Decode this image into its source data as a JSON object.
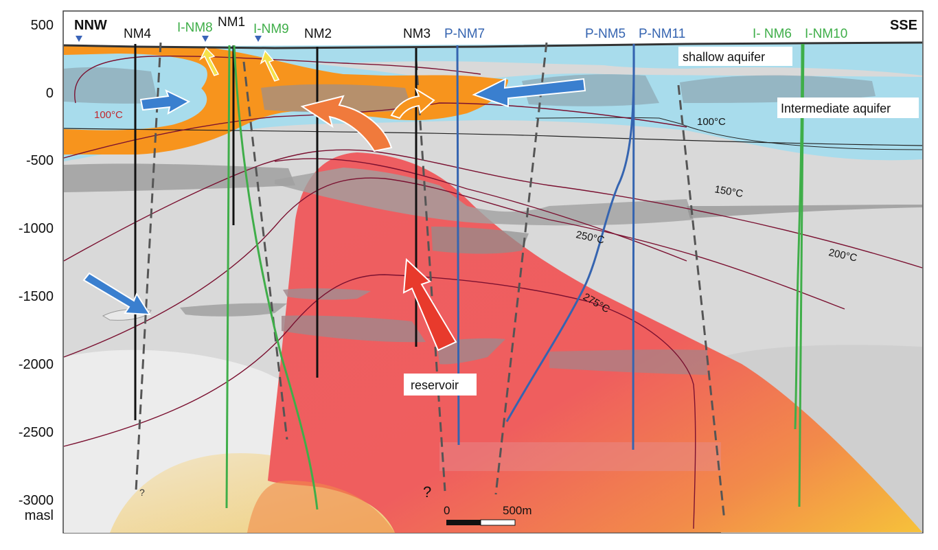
{
  "section": {
    "left_end": "NNW",
    "right_end": "SSE",
    "unit": "masl"
  },
  "depth_axis": {
    "ticks": [
      {
        "label": "500",
        "value": 500
      },
      {
        "label": "0",
        "value": 0
      },
      {
        "label": "-500",
        "value": -500
      },
      {
        "label": "-1000",
        "value": -1000
      },
      {
        "label": "-1500",
        "value": -1500
      },
      {
        "label": "-2000",
        "value": -2000
      },
      {
        "label": "-2500",
        "value": -2500
      },
      {
        "label": "-3000",
        "value": -3000
      }
    ]
  },
  "wells": {
    "NM4": "NM4",
    "INM8": "I-NM8",
    "NM1": "NM1",
    "INM9": "I-NM9",
    "NM2": "NM2",
    "NM3": "NM3",
    "PNM7": "P-NM7",
    "PNM5": "P-NM5",
    "PNM11": "P-NM11",
    "INM6": "I- NM6",
    "INM10": "I-NM10"
  },
  "labels": {
    "shallow_aquifer": "shallow aquifer",
    "intermediate_aquifer": "Intermediate aquifer",
    "reservoir": "reservoir",
    "question_1": "?",
    "question_2": "?"
  },
  "isotherms": {
    "t100_left": "100°C",
    "t100_right": "100°C",
    "t150": "150°C",
    "t200": "200°C",
    "t250": "250°C",
    "t275": "275°C"
  },
  "scale_bar": {
    "start": "0",
    "end": "500m"
  },
  "colors": {
    "aquifer": "#a8dcec",
    "outflow": "#f7941d",
    "reservoir": "#ee5a5a",
    "basement": "#f4c430",
    "injection_well": "#3fae49",
    "production_well": "#3564b0",
    "isotherm": "#7a1030",
    "background": "#d9d9d9"
  }
}
